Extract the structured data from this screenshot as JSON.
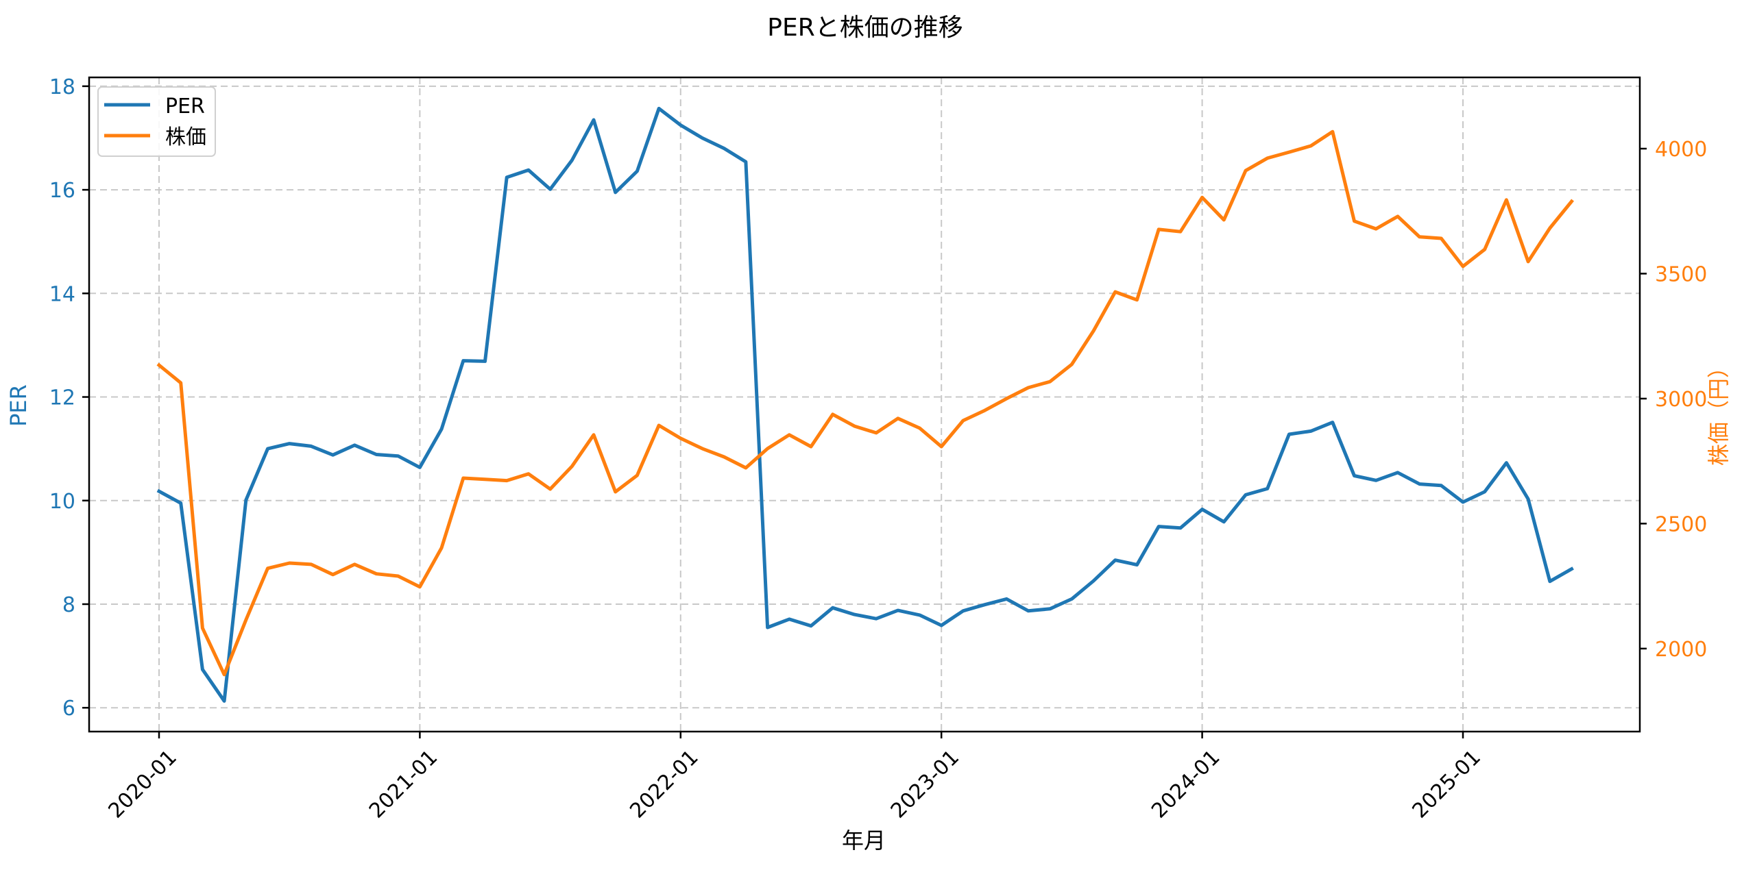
{
  "chart_data": {
    "type": "line",
    "title": "PERと株価の推移",
    "xlabel": "年月",
    "ylabel_left": "PER",
    "ylabel_right": "株価（円）",
    "x_start": "2020-01",
    "x_tick_labels": [
      "2020-01",
      "2021-01",
      "2022-01",
      "2023-01",
      "2024-01",
      "2025-01"
    ],
    "x_tick_indices": [
      0,
      12,
      24,
      36,
      48,
      60
    ],
    "x_tick_rotation": 45,
    "y_left_ticks": [
      6,
      8,
      10,
      12,
      14,
      16,
      18
    ],
    "y_left_lim": [
      5.54,
      18.17
    ],
    "y_right_ticks": [
      2000,
      2500,
      3000,
      3500,
      4000
    ],
    "y_right_lim": [
      1668,
      4285
    ],
    "grid": true,
    "grid_style": "dashed",
    "legend_position": "upper left",
    "x": [
      "2020-01",
      "2020-02",
      "2020-03",
      "2020-04",
      "2020-05",
      "2020-06",
      "2020-07",
      "2020-08",
      "2020-09",
      "2020-10",
      "2020-11",
      "2020-12",
      "2021-01",
      "2021-02",
      "2021-03",
      "2021-04",
      "2021-05",
      "2021-06",
      "2021-07",
      "2021-08",
      "2021-09",
      "2021-10",
      "2021-11",
      "2021-12",
      "2022-01",
      "2022-02",
      "2022-03",
      "2022-04",
      "2022-05",
      "2022-06",
      "2022-07",
      "2022-08",
      "2022-09",
      "2022-10",
      "2022-11",
      "2022-12",
      "2023-01",
      "2023-02",
      "2023-03",
      "2023-04",
      "2023-05",
      "2023-06",
      "2023-07",
      "2023-08",
      "2023-09",
      "2023-10",
      "2023-11",
      "2023-12",
      "2024-01",
      "2024-02",
      "2024-03",
      "2024-04",
      "2024-05",
      "2024-06",
      "2024-07",
      "2024-08",
      "2024-09",
      "2024-10",
      "2024-11",
      "2024-12",
      "2025-01",
      "2025-02",
      "2025-03",
      "2025-04",
      "2025-05",
      "2025-06"
    ],
    "series": [
      {
        "name": "PER",
        "axis": "left",
        "color": "#1f77b4",
        "values": [
          10.18,
          9.95,
          6.74,
          6.13,
          10.01,
          11.0,
          11.1,
          11.05,
          10.88,
          11.07,
          10.89,
          10.86,
          10.64,
          11.38,
          12.7,
          12.69,
          16.24,
          16.38,
          16.01,
          16.57,
          17.35,
          15.95,
          16.36,
          17.57,
          17.25,
          17.0,
          16.8,
          16.54,
          7.55,
          7.71,
          7.58,
          7.93,
          7.8,
          7.72,
          7.88,
          7.79,
          7.59,
          7.87,
          7.99,
          8.1,
          7.87,
          7.91,
          8.1,
          8.45,
          8.85,
          8.76,
          9.5,
          9.47,
          9.83,
          9.59,
          10.11,
          10.23,
          11.28,
          11.34,
          11.51,
          10.48,
          10.39,
          10.54,
          10.32,
          10.29,
          9.97,
          10.17,
          10.73,
          10.03,
          8.44,
          8.68
        ]
      },
      {
        "name": "株価",
        "axis": "right",
        "color": "#ff7f0e",
        "values": [
          3134,
          3063,
          2082,
          1896,
          2115,
          2321,
          2342,
          2337,
          2296,
          2337,
          2299,
          2290,
          2247,
          2403,
          2682,
          2677,
          2672,
          2699,
          2638,
          2729,
          2855,
          2627,
          2693,
          2893,
          2841,
          2800,
          2767,
          2723,
          2800,
          2855,
          2808,
          2937,
          2890,
          2863,
          2921,
          2882,
          2808,
          2912,
          2953,
          3000,
          3044,
          3068,
          3137,
          3271,
          3427,
          3395,
          3677,
          3668,
          3805,
          3715,
          3912,
          3962,
          3986,
          4011,
          4068,
          3710,
          3679,
          3729,
          3647,
          3641,
          3529,
          3597,
          3795,
          3548,
          3682,
          3789
        ]
      }
    ]
  },
  "legend": {
    "items": [
      {
        "label": "PER",
        "color": "#1f77b4"
      },
      {
        "label": "株価",
        "color": "#ff7f0e"
      }
    ]
  },
  "colors": {
    "per": "#1f77b4",
    "price": "#ff7f0e",
    "grid": "#c8c8c8",
    "axis": "#000000"
  }
}
